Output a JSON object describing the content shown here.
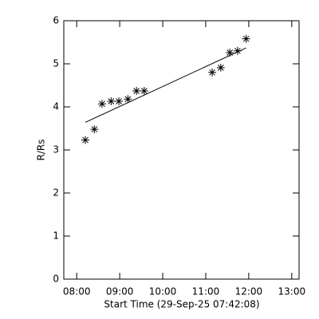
{
  "chart_data": {
    "type": "scatter",
    "x_label": "Start Time (29-Sep-25 07:42:08)",
    "y_label": "R/Rs",
    "x": [
      8.2,
      8.41,
      8.59,
      8.8,
      8.98,
      9.19,
      9.39,
      9.57,
      11.15,
      11.35,
      11.56,
      11.74,
      11.94
    ],
    "values": [
      3.23,
      3.48,
      4.07,
      4.13,
      4.13,
      4.18,
      4.37,
      4.37,
      4.8,
      4.91,
      5.26,
      5.3,
      5.58
    ],
    "color": "#000000",
    "fit": {
      "x": [
        8.2,
        11.94
      ],
      "values": [
        3.64,
        5.37
      ]
    },
    "xlim": [
      7.7,
      13.17
    ],
    "ylim": [
      0,
      6
    ],
    "xticks": [
      {
        "value": 8,
        "label": "08:00"
      },
      {
        "value": 9,
        "label": "09:00"
      },
      {
        "value": 10,
        "label": "10:00"
      },
      {
        "value": 11,
        "label": "11:00"
      },
      {
        "value": 12,
        "label": "12:00"
      },
      {
        "value": 13,
        "label": "13:00"
      }
    ],
    "yticks": [
      0,
      1,
      2,
      3,
      4,
      5,
      6
    ],
    "grid": false
  }
}
